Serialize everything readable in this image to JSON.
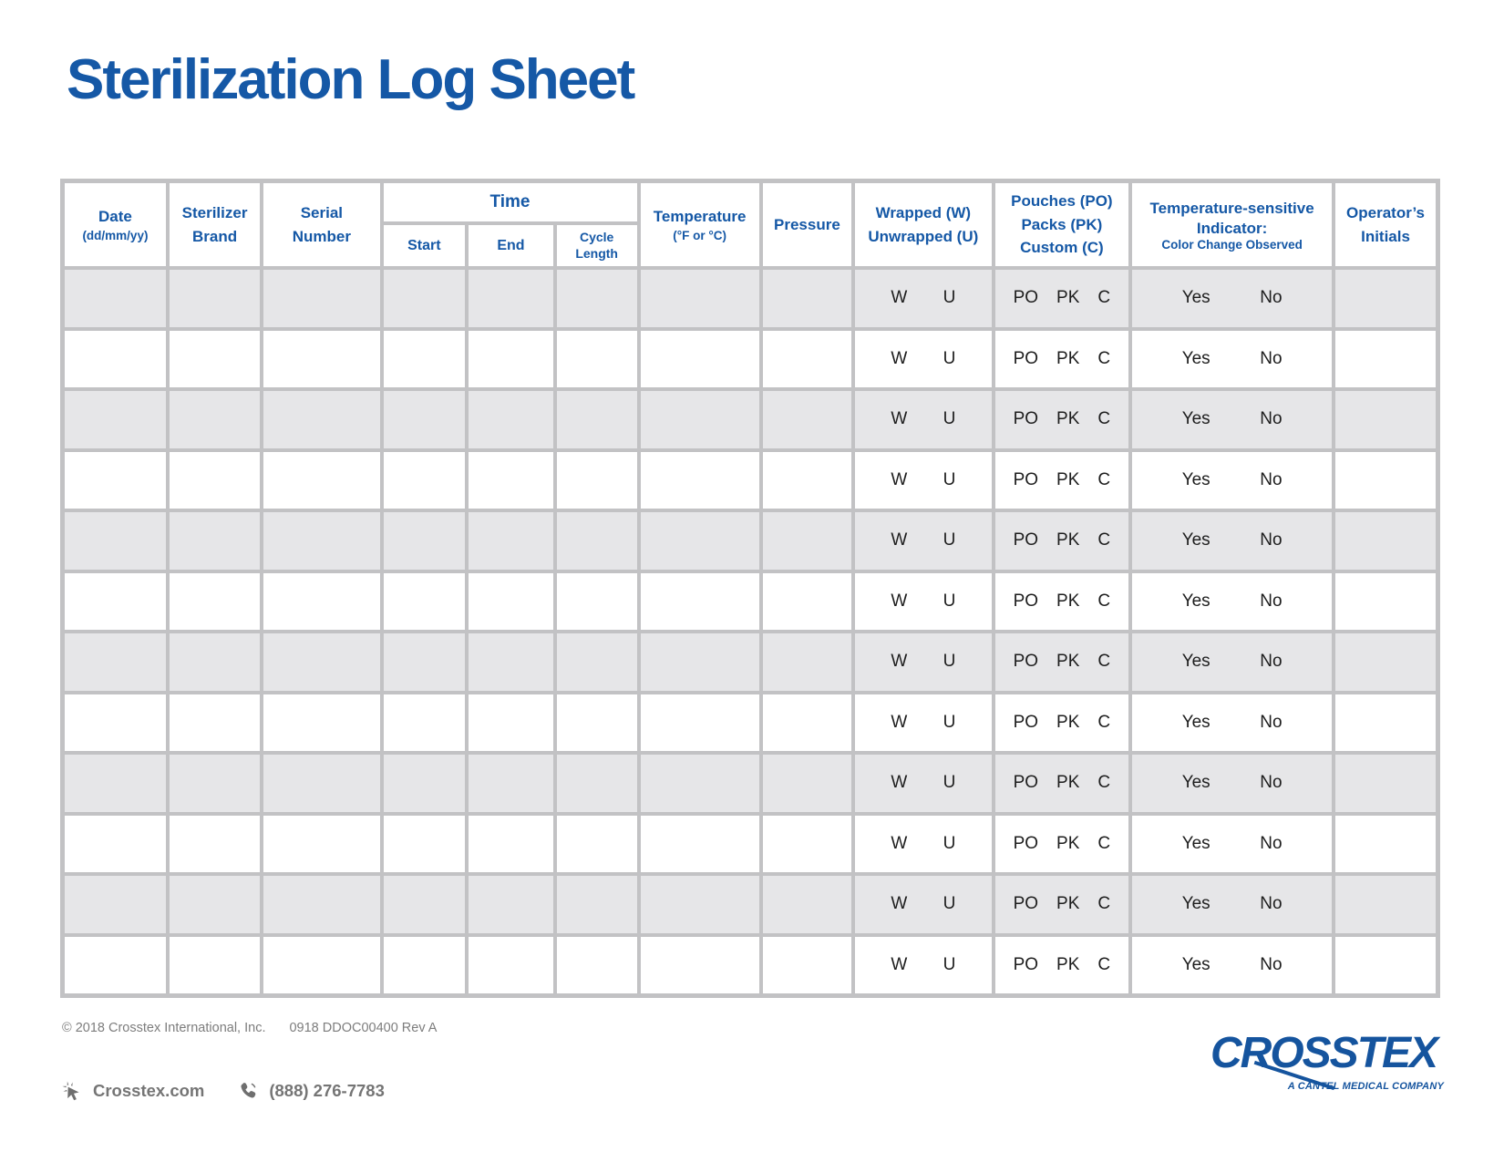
{
  "page": {
    "title": "Sterilization Log Sheet"
  },
  "colors": {
    "accent_blue": "#1558A6",
    "logo_blue": "#15549E",
    "row_stripe_gray": "#E6E6E8",
    "grid_line_gray": "#C2C2C4",
    "row_text_dark": "#1D1D1D",
    "footer_gray": "#7D7D7D"
  },
  "table": {
    "header": {
      "date": {
        "line1": "Date",
        "line2": "(dd/mm/yy)"
      },
      "sterilizer": {
        "line1": "Sterilizer",
        "line2": "Brand"
      },
      "serial": {
        "line1": "Serial",
        "line2": "Number"
      },
      "time": {
        "title": "Time",
        "start": "Start",
        "end": "End",
        "cycle_line1": "Cycle",
        "cycle_line2": "Length"
      },
      "temperature": {
        "line1": "Temperature",
        "line2": "(°F or °C)"
      },
      "pressure": "Pressure",
      "wrapped": {
        "line1": "Wrapped (W)",
        "line2": "Unwrapped (U)"
      },
      "pouches": {
        "line1": "Pouches (PO)",
        "line2": "Packs (PK)",
        "line3": "Custom (C)"
      },
      "indicator": {
        "line1": "Temperature-sensitive",
        "line2": "Indicator:",
        "line3": "Color Change Observed"
      },
      "operator": {
        "line1": "Operator’s",
        "line2": "Initials"
      }
    },
    "rows": {
      "count": 12,
      "wrapped_options": [
        "W",
        "U"
      ],
      "pouches_options": [
        "PO",
        "PK",
        "C"
      ],
      "indicator_options": [
        "Yes",
        "No"
      ]
    }
  },
  "footer": {
    "copyright": "© 2018 Crosstex International, Inc.",
    "doc_code": "0918 DDOC00400 Rev A",
    "website": "Crosstex.com",
    "phone": "(888) 276-7783"
  },
  "logo": {
    "name": "CROSSTEX",
    "tagline": "A CANTEL MEDICAL COMPANY"
  }
}
